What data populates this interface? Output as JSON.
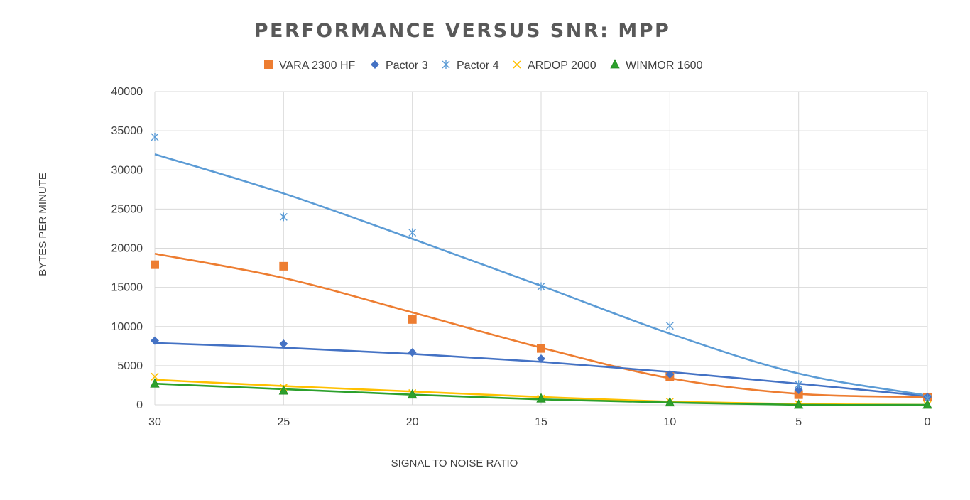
{
  "chart_data": {
    "type": "scatter",
    "title": "PERFORMANCE VERSUS SNR: MPP",
    "xlabel": "SIGNAL TO NOISE RATIO",
    "ylabel": "BYTES PER MINUTE",
    "x_reversed": true,
    "xlim": [
      30,
      0
    ],
    "ylim": [
      0,
      40000
    ],
    "x_ticks": [
      30,
      25,
      20,
      15,
      10,
      5,
      0
    ],
    "y_ticks": [
      0,
      5000,
      10000,
      15000,
      20000,
      25000,
      30000,
      35000,
      40000
    ],
    "grid": true,
    "legend_position": "top",
    "trendlines": "polynomial",
    "x": [
      30,
      25,
      20,
      15,
      10,
      5,
      0
    ],
    "series": [
      {
        "name": "VARA 2300 HF",
        "color": "#ED7D31",
        "marker": "square",
        "values": [
          17900,
          17700,
          10900,
          7200,
          3600,
          1300,
          1000
        ],
        "trend": [
          19300,
          16200,
          11800,
          7300,
          3400,
          1400,
          1000
        ]
      },
      {
        "name": "Pactor 3",
        "color": "#4472C4",
        "marker": "diamond",
        "values": [
          8200,
          7800,
          6700,
          5900,
          3900,
          1900,
          1000
        ],
        "trend": [
          7900,
          7300,
          6500,
          5500,
          4200,
          2700,
          1100
        ]
      },
      {
        "name": "Pactor 4",
        "color": "#5B9BD5",
        "marker": "asterisk",
        "values": [
          34200,
          24000,
          22000,
          15100,
          10100,
          2600,
          800
        ],
        "trend": [
          32000,
          27000,
          21200,
          15200,
          9100,
          4000,
          1200
        ]
      },
      {
        "name": "ARDOP 2000",
        "color": "#FFC000",
        "marker": "x",
        "values": [
          3600,
          2200,
          1500,
          800,
          400,
          100,
          0
        ],
        "trend": [
          3200,
          2400,
          1700,
          1000,
          400,
          100,
          0
        ]
      },
      {
        "name": "WINMOR 1600",
        "color": "#2CA02C",
        "marker": "triangle",
        "values": [
          2700,
          1800,
          1300,
          800,
          300,
          0,
          0
        ],
        "trend": [
          2700,
          2000,
          1300,
          700,
          300,
          0,
          0
        ]
      }
    ]
  }
}
